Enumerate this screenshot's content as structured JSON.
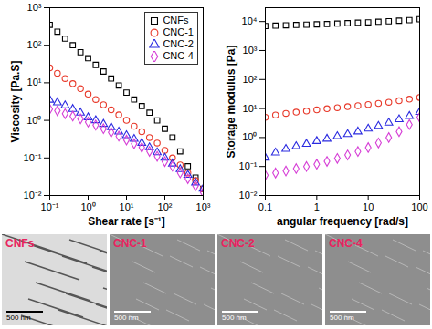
{
  "chart_data": [
    {
      "type": "scatter",
      "x_label": "Shear rate [s⁻¹]",
      "y_label": "Viscosity [Pa.S]",
      "log": true,
      "legend": "top-right",
      "xlim": [
        0.1,
        1000
      ],
      "ylim": [
        0.01,
        1000
      ],
      "xticks": [
        {
          "value": 0.1,
          "label": "10⁻¹"
        },
        {
          "value": 1,
          "label": "10⁰"
        },
        {
          "value": 10,
          "label": "10¹"
        },
        {
          "value": 100,
          "label": "10²"
        },
        {
          "value": 1000,
          "label": "10³"
        }
      ],
      "yticks": [
        {
          "value": 0.01,
          "label": "10⁻²"
        },
        {
          "value": 0.1,
          "label": "10⁻¹"
        },
        {
          "value": 1,
          "label": "10⁰"
        },
        {
          "value": 10,
          "label": "10¹"
        },
        {
          "value": 100,
          "label": "10²"
        },
        {
          "value": 1000,
          "label": "10³"
        }
      ],
      "x": [
        0.1,
        0.158,
        0.251,
        0.398,
        0.631,
        1,
        1.58,
        2.51,
        3.98,
        6.31,
        10,
        15.8,
        25.1,
        39.8,
        63.1,
        100,
        158,
        251,
        398,
        631,
        1000
      ],
      "series": [
        {
          "name": "CNFs",
          "color": "#000000",
          "marker": "square",
          "values": [
            350,
            230,
            150,
            100,
            65,
            45,
            30,
            20,
            13,
            8.5,
            5.5,
            3.6,
            2.4,
            1.6,
            1.0,
            0.6,
            0.35,
            0.15,
            0.06,
            0.03,
            0.015
          ]
        },
        {
          "name": "CNC-1",
          "color": "#e8392a",
          "marker": "circle",
          "values": [
            25,
            18,
            13,
            9.5,
            7,
            5,
            3.6,
            2.6,
            1.9,
            1.4,
            1.0,
            0.7,
            0.5,
            0.35,
            0.25,
            0.16,
            0.1,
            0.065,
            0.04,
            0.025,
            0.015
          ]
        },
        {
          "name": "CNC-2",
          "color": "#2a2ae0",
          "marker": "triangle",
          "values": [
            3.5,
            3.0,
            2.5,
            2.0,
            1.6,
            1.2,
            1.0,
            0.8,
            0.65,
            0.5,
            0.4,
            0.32,
            0.25,
            0.19,
            0.14,
            0.1,
            0.07,
            0.05,
            0.035,
            0.022,
            0.015
          ]
        },
        {
          "name": "CNC-4",
          "color": "#d63fd6",
          "marker": "diamond",
          "values": [
            2.0,
            1.8,
            1.5,
            1.3,
            1.1,
            0.9,
            0.75,
            0.6,
            0.48,
            0.38,
            0.3,
            0.24,
            0.19,
            0.15,
            0.11,
            0.08,
            0.06,
            0.04,
            0.028,
            0.018,
            0.012
          ]
        }
      ]
    },
    {
      "type": "scatter",
      "x_label": "angular frequency [rad/s]",
      "y_label": "Storage modulus [Pa]",
      "log": true,
      "xlim": [
        0.1,
        100
      ],
      "ylim": [
        0.01,
        30000
      ],
      "xticks": [
        0.1,
        1,
        10,
        100
      ],
      "yticks": [
        {
          "value": 0.01,
          "label": "10⁻²"
        },
        {
          "value": 0.1,
          "label": "10⁻¹"
        },
        {
          "value": 1,
          "label": "10⁰"
        },
        {
          "value": 10,
          "label": "10¹"
        },
        {
          "value": 100,
          "label": "10²"
        },
        {
          "value": 1000,
          "label": "10³"
        },
        {
          "value": 10000,
          "label": "10⁴"
        }
      ],
      "x": [
        0.1,
        0.158,
        0.251,
        0.398,
        0.631,
        1,
        1.58,
        2.51,
        3.98,
        6.31,
        10,
        15.8,
        25.1,
        39.8,
        63.1,
        100
      ],
      "series": [
        {
          "name": "CNFs",
          "color": "#000000",
          "marker": "square",
          "values": [
            7000,
            7200,
            7400,
            7600,
            7800,
            8000,
            8200,
            8500,
            8800,
            9100,
            9400,
            9800,
            10200,
            10700,
            11200,
            12000
          ]
        },
        {
          "name": "CNC-1",
          "color": "#e8392a",
          "marker": "circle",
          "values": [
            5,
            6,
            6.8,
            7.5,
            8.2,
            9,
            9.8,
            10.7,
            11.6,
            12.6,
            13.8,
            15,
            16.5,
            18.5,
            21,
            24
          ]
        },
        {
          "name": "CNC-2",
          "color": "#2a2ae0",
          "marker": "triangle",
          "values": [
            0.2,
            0.3,
            0.4,
            0.5,
            0.6,
            0.75,
            0.9,
            1.1,
            1.3,
            1.6,
            2,
            2.5,
            3.2,
            4.2,
            5.5,
            7.5
          ]
        },
        {
          "name": "CNC-4",
          "color": "#d63fd6",
          "marker": "diamond",
          "values": [
            0.05,
            0.06,
            0.07,
            0.085,
            0.1,
            0.12,
            0.15,
            0.19,
            0.25,
            0.33,
            0.45,
            0.65,
            1,
            1.6,
            2.8,
            5
          ]
        }
      ]
    }
  ],
  "images": [
    {
      "label": "CNFs",
      "scale_bar": "500 nm"
    },
    {
      "label": "CNC-1",
      "scale_bar": "500 nm"
    },
    {
      "label": "CNC-2",
      "scale_bar": "500 nm"
    },
    {
      "label": "CNC-4",
      "scale_bar": "500 nm"
    }
  ]
}
